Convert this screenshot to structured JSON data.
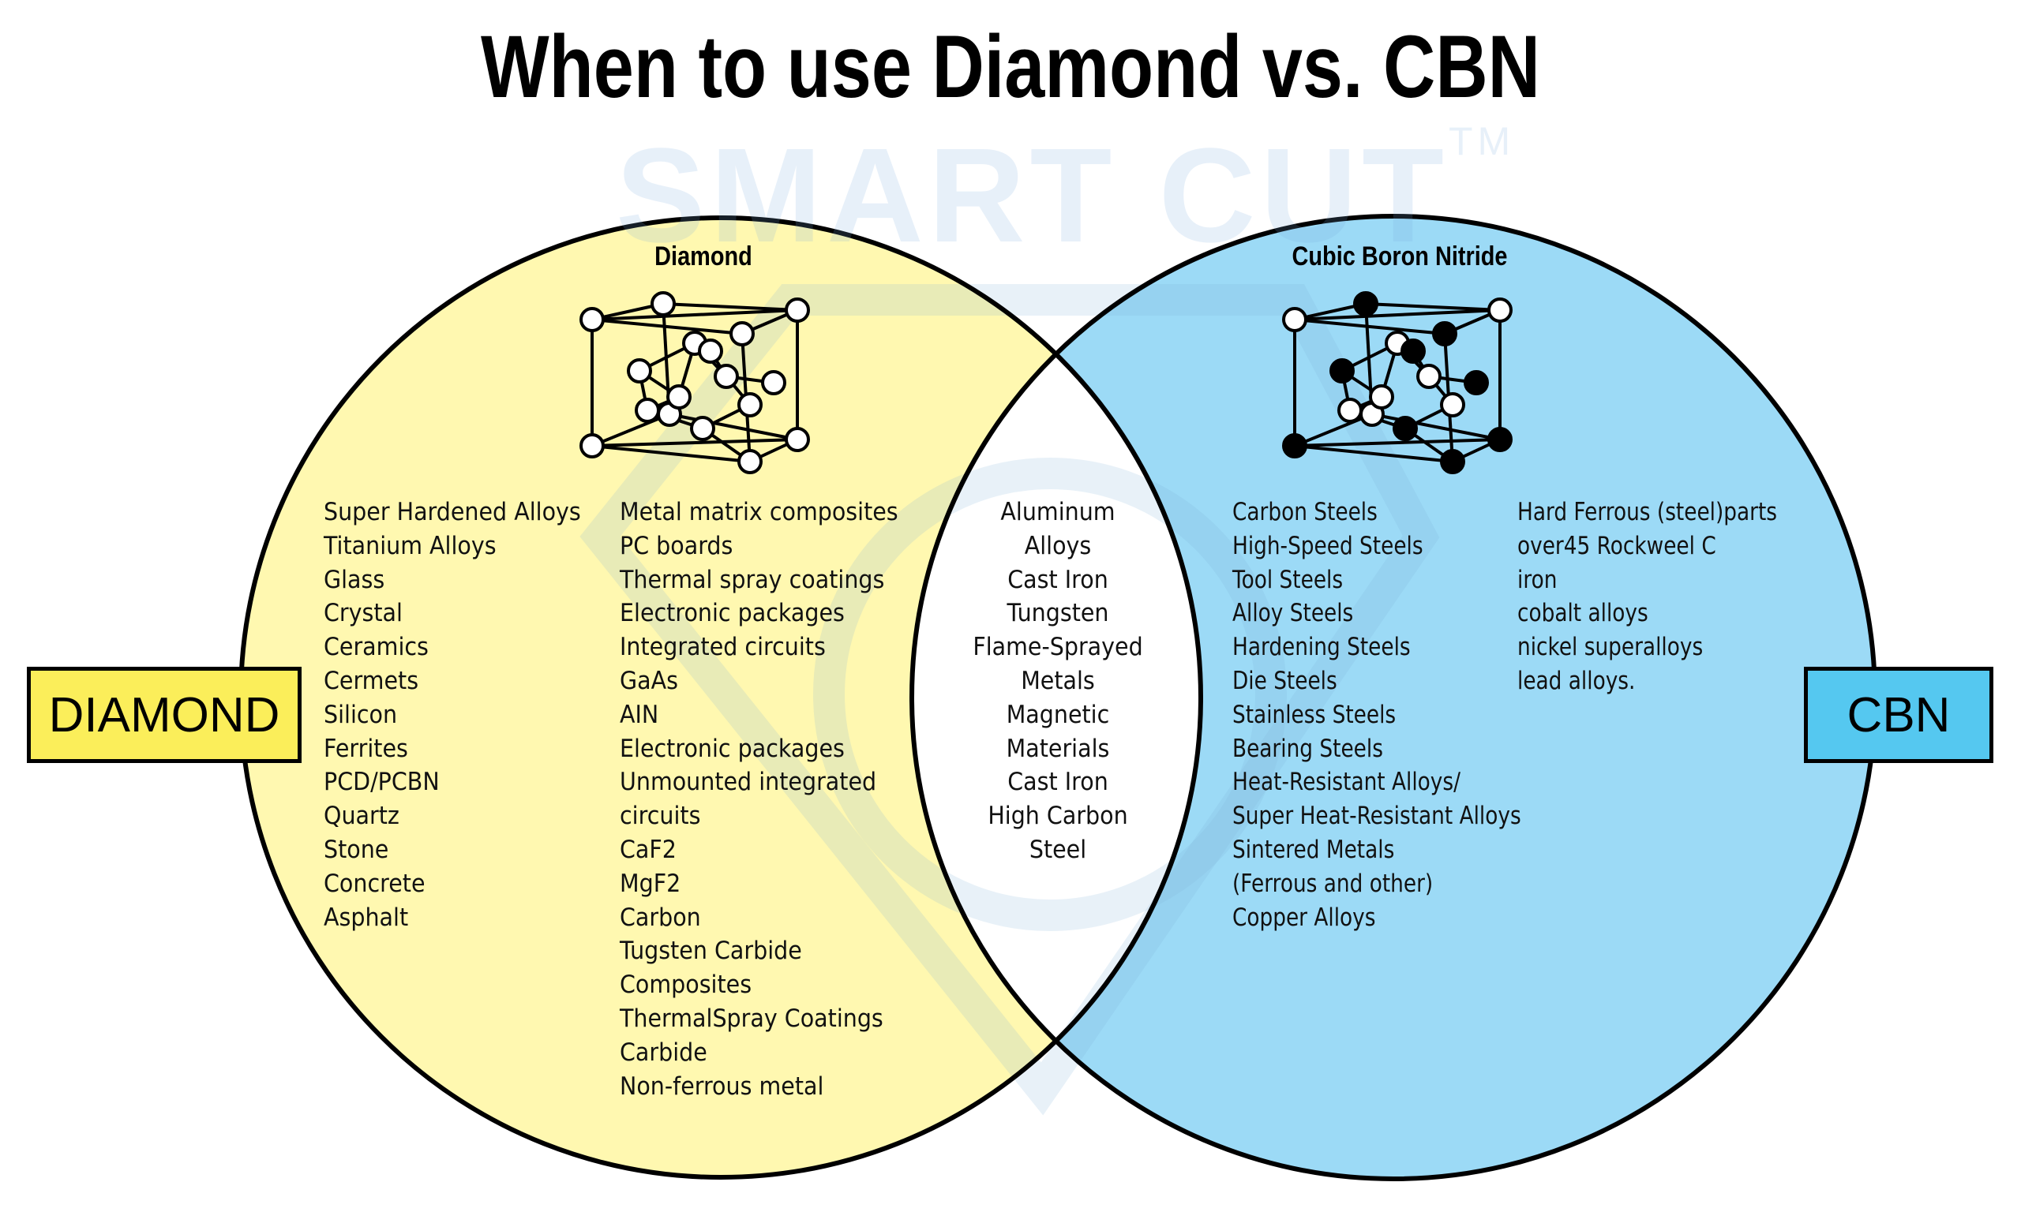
{
  "title": "When to use Diamond vs. CBN",
  "watermark": {
    "text": "SMART CUT",
    "mark": "TM"
  },
  "colors": {
    "diamond_fill": "#fff8b0",
    "cbn_fill": "#9cdaf6",
    "diamond_box": "#fbee5a",
    "cbn_box": "#55c8f0",
    "overlap": "#ffffff"
  },
  "diamond": {
    "box_label": "DIAMOND",
    "heading": "Diamond",
    "structure_icon": "diamond-crystal-lattice",
    "column1": [
      "Super Hardened Alloys",
      "Titanium Alloys",
      "Glass",
      "Crystal",
      "Ceramics",
      "Cermets",
      "Silicon",
      "Ferrites",
      "PCD/PCBN",
      "Quartz",
      "Stone",
      "Concrete",
      "Asphalt"
    ],
    "column2": [
      "Metal matrix composites",
      "PC boards",
      "Thermal spray coatings",
      "Electronic packages",
      "Integrated circuits",
      "GaAs",
      "AIN",
      "Electronic packages",
      "Unmounted integrated",
      "circuits",
      "CaF2",
      "MgF2",
      "Carbon",
      "Tugsten Carbide",
      "Composites",
      "ThermalSpray Coatings",
      "Carbide",
      "Non-ferrous metal"
    ]
  },
  "both": [
    "Aluminum",
    "Alloys",
    "Cast Iron",
    "Tungsten",
    "Flame-Sprayed",
    "Metals",
    "Magnetic",
    "Materials",
    "Cast Iron",
    "High Carbon",
    "Steel"
  ],
  "cbn": {
    "box_label": "CBN",
    "heading": "Cubic Boron Nitride",
    "structure_icon": "cbn-crystal-lattice",
    "column1": [
      "Carbon Steels",
      "High-Speed Steels",
      "Tool Steels",
      "Alloy Steels",
      "Hardening Steels",
      "Die Steels",
      "Stainless Steels",
      "Bearing Steels",
      "Heat-Resistant Alloys/",
      "Super Heat-Resistant Alloys",
      "Sintered Metals",
      "(Ferrous and other)",
      "Copper Alloys"
    ],
    "column2": [
      "Hard Ferrous (steel)parts",
      "over45 Rockweel C",
      "iron",
      "cobalt alloys",
      "nickel superalloys",
      "lead alloys."
    ]
  }
}
